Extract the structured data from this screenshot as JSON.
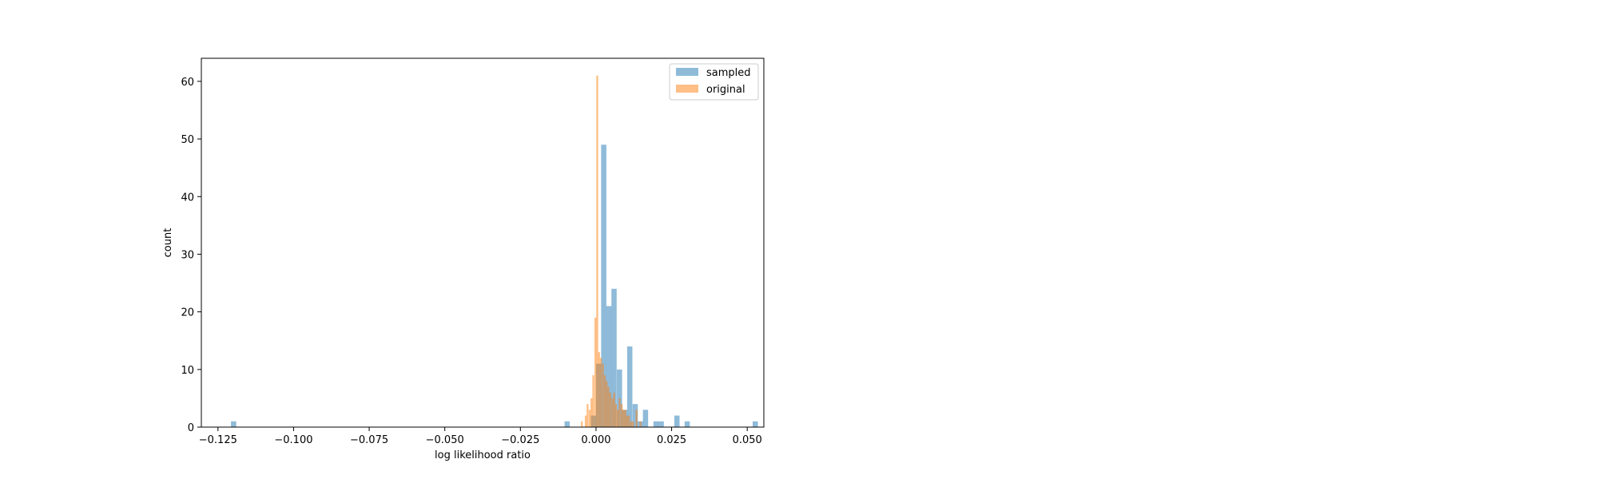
{
  "chart_data": {
    "type": "bar",
    "title": "",
    "xlabel": "log likelihood ratio",
    "ylabel": "count",
    "xlim": [
      -0.1305,
      0.0555
    ],
    "ylim": [
      0,
      64
    ],
    "xticks": [
      -0.125,
      -0.1,
      -0.075,
      -0.05,
      -0.025,
      0.0,
      0.025,
      0.05
    ],
    "xtick_labels": [
      "−0.125",
      "−0.100",
      "−0.075",
      "−0.050",
      "−0.025",
      "0.000",
      "0.025",
      "0.050"
    ],
    "yticks": [
      0,
      10,
      20,
      30,
      40,
      50,
      60
    ],
    "ytick_labels": [
      "0",
      "10",
      "20",
      "30",
      "40",
      "50",
      "60"
    ],
    "grid": false,
    "legend_position": "top-right",
    "bar_alpha": 0.5,
    "series": [
      {
        "name": "sampled",
        "color": "#1f77b4",
        "bin_width": 0.00173,
        "x": [
          -0.1207,
          -0.0104,
          -0.0017,
          -1e-05,
          0.0017,
          0.0034,
          0.0051,
          0.0069,
          0.0086,
          0.0103,
          0.0121,
          0.0138,
          0.0155,
          0.019,
          0.0207,
          0.0259,
          0.0293,
          0.0518
        ],
        "values": [
          1,
          1,
          2,
          11,
          49,
          21,
          24,
          10,
          3,
          14,
          4,
          1,
          3,
          1,
          1,
          2,
          1,
          1
        ]
      },
      {
        "name": "original",
        "color": "#ff7f0e",
        "bin_width": 0.00062,
        "x": [
          -0.005,
          -0.0043,
          -0.0037,
          -0.0031,
          -0.0024,
          -0.0018,
          -0.0012,
          -0.0005,
          0.0001,
          0.0007,
          0.0013,
          0.002,
          0.0026,
          0.0032,
          0.0038,
          0.0044,
          0.0051,
          0.0057,
          0.0063,
          0.0069,
          0.0075,
          0.0082,
          0.0088,
          0.0094,
          0.01,
          0.0106,
          0.0113,
          0.0119,
          0.0125,
          0.0131,
          0.0137,
          0.0144
        ],
        "values": [
          1,
          0,
          2,
          4,
          3,
          5,
          9,
          19,
          61,
          13,
          12,
          11,
          9,
          8,
          7,
          6,
          5,
          6,
          4,
          3,
          5,
          4,
          3,
          3,
          2,
          2,
          1,
          1,
          0,
          3,
          0,
          1
        ]
      }
    ]
  }
}
